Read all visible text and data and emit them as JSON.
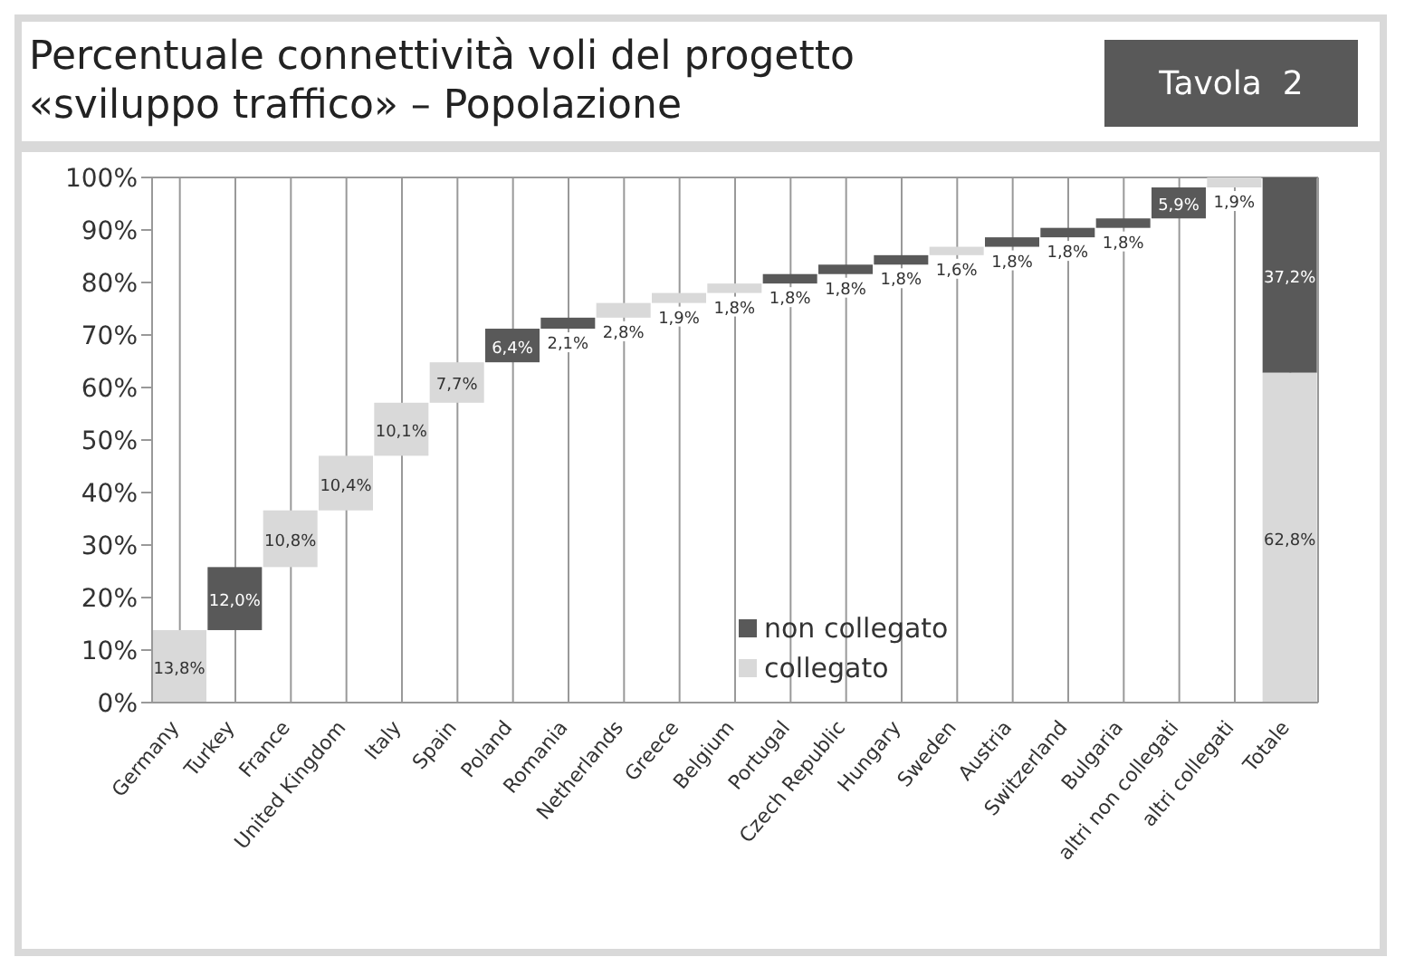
{
  "chart_data": {
    "type": "bar",
    "title": "Percentuale connettività voli del progetto «sviluppo traffico» – Popolazione",
    "annotations": [
      "Tavola  2"
    ],
    "categories": [
      "Germany",
      "Turkey",
      "France",
      "United Kingdom",
      "Italy",
      "Spain",
      "Poland",
      "Romania",
      "Netherlands",
      "Greece",
      "Belgium",
      "Portugal",
      "Czech Republic",
      "Hungary",
      "Sweden",
      "Austria",
      "Switzerland",
      "Bulgaria",
      "altri non collegati",
      "altri collegati",
      "Totale"
    ],
    "series": [
      {
        "name": "non collegato",
        "color": "#595959",
        "values": [
          null,
          12.0,
          null,
          null,
          null,
          null,
          6.4,
          2.1,
          null,
          null,
          null,
          1.8,
          1.8,
          1.8,
          null,
          1.8,
          1.8,
          1.8,
          5.9,
          null,
          37.2
        ],
        "base": [
          null,
          13.8,
          null,
          null,
          null,
          null,
          64.8,
          71.2,
          null,
          null,
          null,
          79.8,
          81.6,
          83.4,
          null,
          86.8,
          88.6,
          90.4,
          92.2,
          null,
          62.8
        ],
        "value_labels": [
          null,
          "12,0%",
          null,
          null,
          null,
          null,
          "6,4%",
          "2,1%",
          null,
          null,
          null,
          "1,8%",
          "1,8%",
          "1,8%",
          null,
          "1,8%",
          "1,8%",
          "1,8%",
          "5,9%",
          null,
          "37,2%"
        ]
      },
      {
        "name": "collegato",
        "color": "#d9d9d9",
        "values": [
          13.8,
          null,
          10.8,
          10.4,
          10.1,
          7.7,
          null,
          null,
          2.8,
          1.9,
          1.8,
          null,
          null,
          null,
          1.6,
          null,
          null,
          null,
          null,
          1.9,
          62.8
        ],
        "base": [
          0,
          null,
          25.8,
          36.6,
          47.0,
          57.1,
          null,
          null,
          73.3,
          76.1,
          78.0,
          null,
          null,
          null,
          85.2,
          null,
          null,
          null,
          null,
          98.1,
          0
        ],
        "value_labels": [
          "13,8%",
          null,
          "10,8%",
          "10,4%",
          "10,1%",
          "7,7%",
          null,
          null,
          "2,8%",
          "1,9%",
          "1,8%",
          null,
          null,
          null,
          "1,6%",
          null,
          null,
          null,
          null,
          "1,9%",
          "62,8%"
        ]
      }
    ],
    "ylim": [
      0,
      100
    ],
    "yticks": [
      {
        "value": 0,
        "label": "0%"
      },
      {
        "value": 10,
        "label": "10%"
      },
      {
        "value": 20,
        "label": "20%"
      },
      {
        "value": 30,
        "label": "30%"
      },
      {
        "value": 40,
        "label": "40%"
      },
      {
        "value": 50,
        "label": "50%"
      },
      {
        "value": 60,
        "label": "60%"
      },
      {
        "value": 70,
        "label": "70%"
      },
      {
        "value": 80,
        "label": "80%"
      },
      {
        "value": 90,
        "label": "90%"
      },
      {
        "value": 100,
        "label": "100%"
      }
    ],
    "grid": true,
    "legend": "center"
  }
}
